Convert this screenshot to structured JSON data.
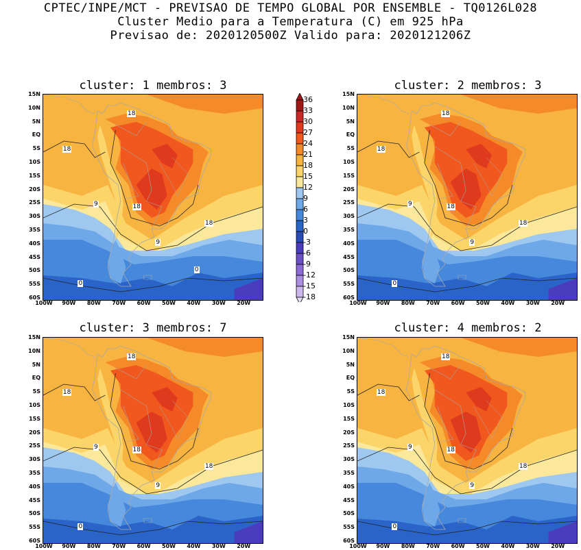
{
  "header": {
    "line1": "CPTEC/INPE/MCT - PREVISAO DE TEMPO GLOBAL POR ENSEMBLE - TQ0126L028",
    "line2": "Cluster Medio para a Temperatura (C) em 925 hPa",
    "line3": "Previsao de: 2020120500Z   Valido para: 2020121206Z"
  },
  "panels": [
    {
      "title": "cluster: 1  membros: 3"
    },
    {
      "title": "cluster: 2  membros: 3"
    },
    {
      "title": "cluster: 3  membros: 7"
    },
    {
      "title": "cluster: 4  membros: 2"
    }
  ],
  "lat_ticks": [
    "15N",
    "10N",
    "5N",
    "EQ",
    "5S",
    "10S",
    "15S",
    "20S",
    "25S",
    "30S",
    "35S",
    "40S",
    "45S",
    "50S",
    "55S",
    "60S"
  ],
  "lon_ticks": [
    "100W",
    "90W",
    "80W",
    "70W",
    "60W",
    "50W",
    "40W",
    "30W",
    "20W"
  ],
  "colorbar": {
    "labels": [
      "36",
      "33",
      "30",
      "27",
      "24",
      "21",
      "18",
      "15",
      "12",
      "9",
      "6",
      "3",
      "0",
      "-3",
      "-6",
      "-9",
      "-12",
      "-15",
      "-18"
    ],
    "colors": [
      "#a01818",
      "#c82828",
      "#e03a1e",
      "#f0581e",
      "#f58a28",
      "#f8b440",
      "#fbd56a",
      "#fbe89a",
      "#9ec8f0",
      "#6ea8e8",
      "#4688dc",
      "#2a64c8",
      "#2a4ab8",
      "#4a3cbc",
      "#6c50c8",
      "#8c6cd4",
      "#ac90e0",
      "#cdb8ec"
    ]
  },
  "contour_labels": {
    "p1": [
      "18",
      "18",
      "18",
      "9",
      "18",
      "9",
      "0",
      "0"
    ],
    "p2": [
      "18",
      "18",
      "18",
      "9",
      "18",
      "9",
      "0"
    ],
    "p3": [
      "18",
      "18",
      "18",
      "9",
      "18",
      "9",
      "0"
    ],
    "p4": [
      "18",
      "18",
      "18",
      "9",
      "18",
      "9",
      "0"
    ]
  }
}
